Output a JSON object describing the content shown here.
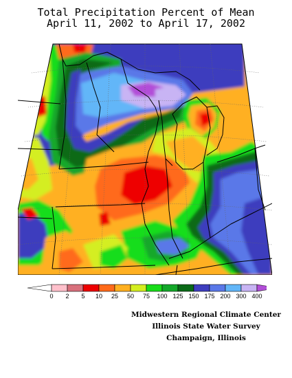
{
  "title": {
    "line1": "Total Precipitation Percent of Mean",
    "line2": "April 11, 2002 to April 17, 2002"
  },
  "legend": {
    "labels": [
      "0",
      "2",
      "5",
      "10",
      "25",
      "50",
      "75",
      "100",
      "125",
      "150",
      "175",
      "200",
      "300",
      "400"
    ],
    "colors": [
      "#ffffff",
      "#ffc0cb",
      "#d8707c",
      "#ee0000",
      "#ff6a1a",
      "#ffb020",
      "#d4ee20",
      "#19dd1a",
      "#14a82a",
      "#0a6a18",
      "#3e3ebe",
      "#5a78e8",
      "#62b6f8",
      "#c8b4f4",
      "#b24ed8"
    ]
  },
  "credits": {
    "line1": "Midwestern Regional Climate Center",
    "line2": "Illinois State Water Survey",
    "line3": "Champaign, Illinois"
  }
}
